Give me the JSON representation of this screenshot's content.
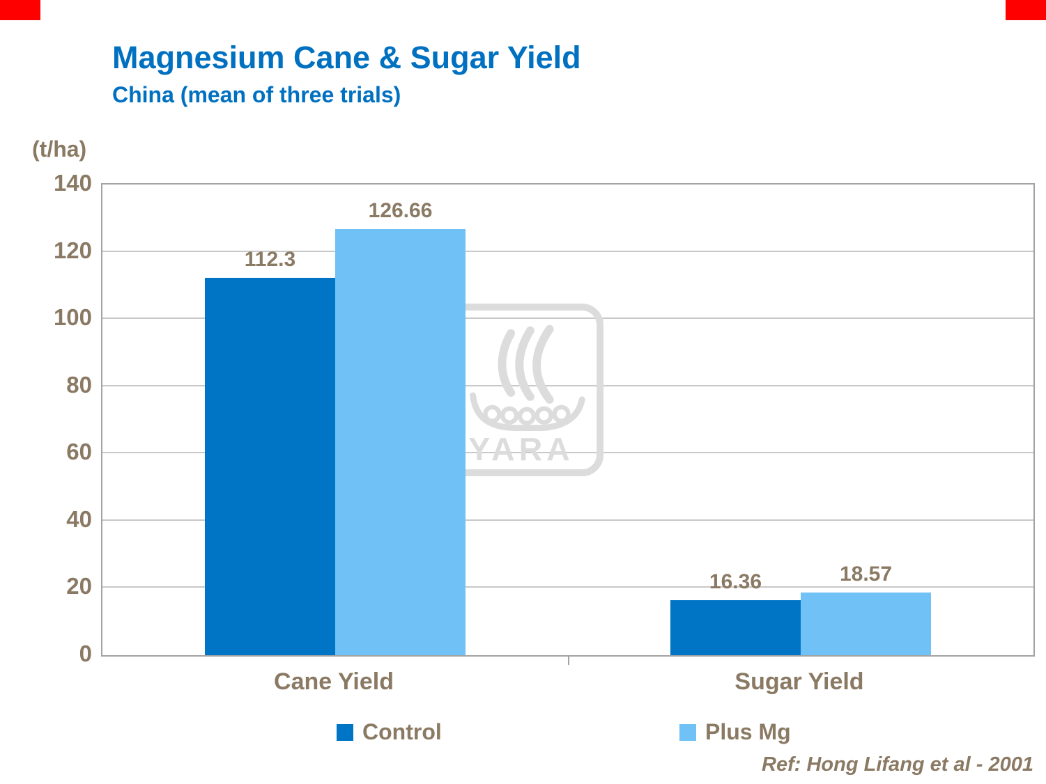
{
  "header": {
    "title": "Magnesium Cane & Sugar Yield",
    "subtitle": "China (mean of three trials)"
  },
  "chart_data": {
    "type": "bar",
    "title": "Magnesium Cane & Sugar Yield",
    "subtitle": "China (mean of three trials)",
    "ylabel": "(t/ha)",
    "xlabel": "",
    "categories": [
      "Cane Yield",
      "Sugar Yield"
    ],
    "series": [
      {
        "name": "Control",
        "color": "#0075C5",
        "values": [
          112.3,
          16.36
        ],
        "labels": [
          "112.3",
          "16.36"
        ]
      },
      {
        "name": "Plus Mg",
        "color": "#6FC1F6",
        "values": [
          126.66,
          18.57
        ],
        "labels": [
          "126.66",
          "18.57"
        ]
      }
    ],
    "ylim": [
      0,
      140
    ],
    "yticks": [
      0,
      20,
      40,
      60,
      80,
      100,
      120,
      140
    ],
    "grid": true,
    "legend_position": "bottom",
    "bar_width_pct": 14
  },
  "watermark": {
    "label": "YARA"
  },
  "footer": {
    "reference": "Ref: Hong Lifang et al - 2001"
  },
  "colors": {
    "title_blue": "#0070C0",
    "label_brown": "#8A7963",
    "control_bar": "#0075C5",
    "plus_mg_bar": "#6FC1F6",
    "gridline": "#C8C8C8",
    "plot_border": "#A3A3A3",
    "corner_mark_red": "#FF0000",
    "watermark_gray": "#DCDCDC"
  }
}
